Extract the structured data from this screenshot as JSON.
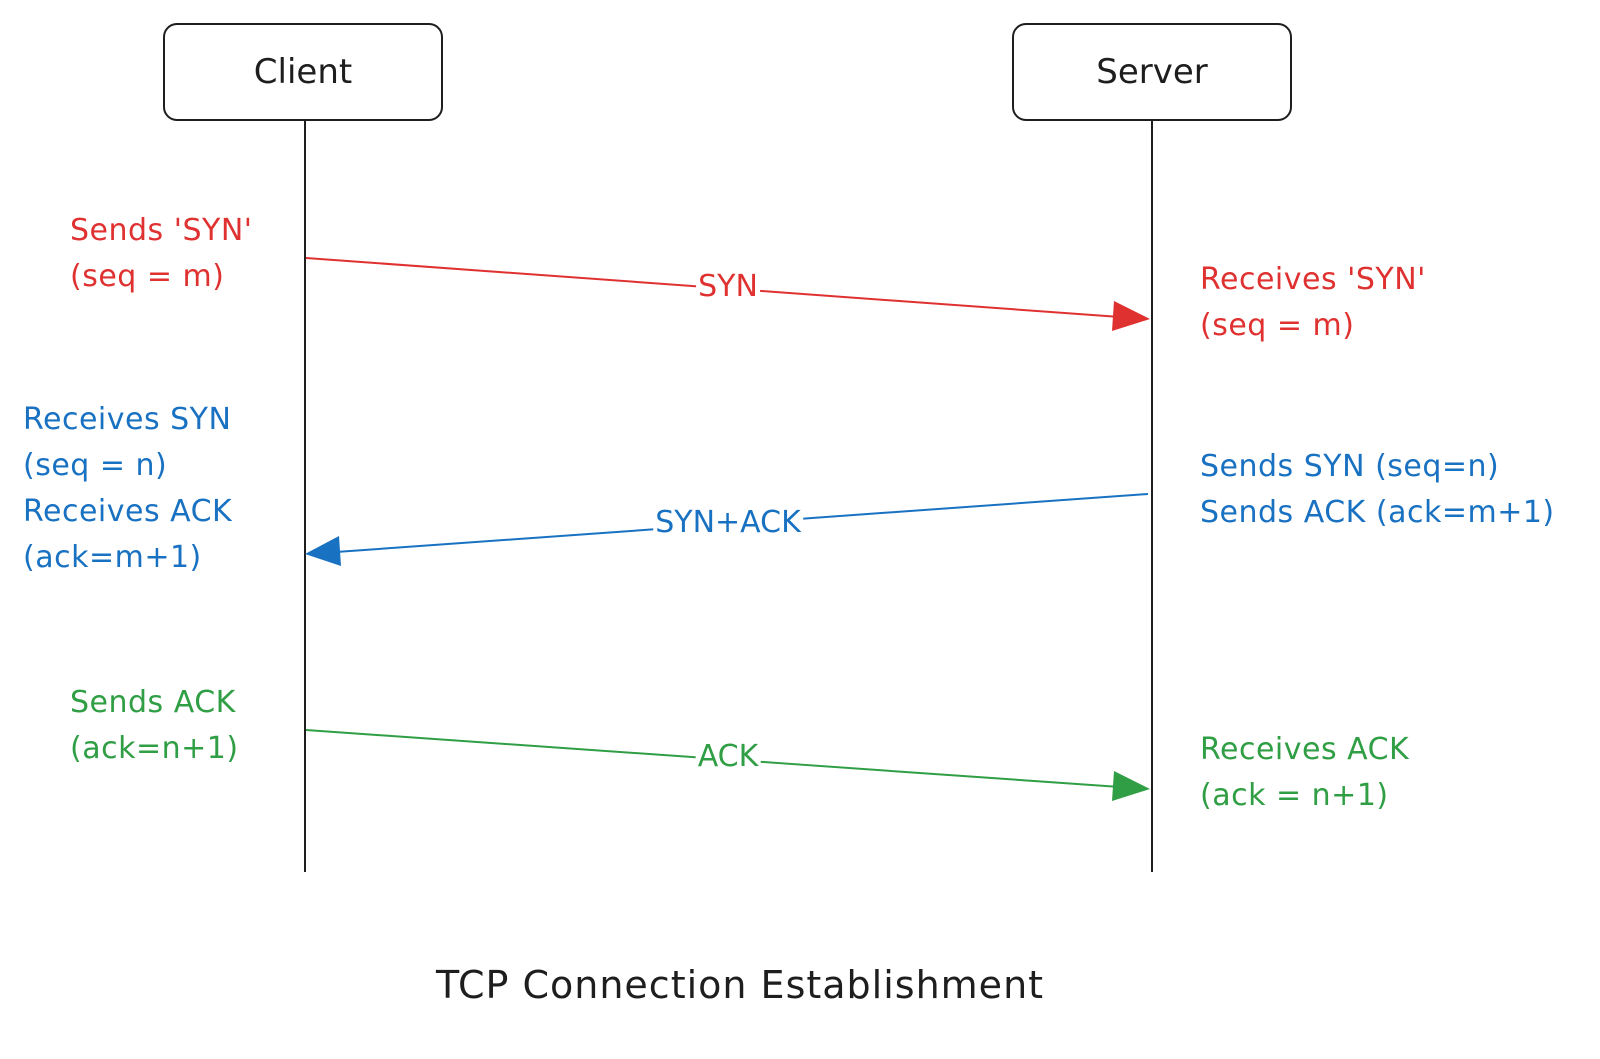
{
  "title": "TCP Connection Establishment",
  "colors": {
    "lifeline": "#1e1e1e",
    "syn": "#e03131",
    "synack": "#1971c2",
    "ack": "#2f9e44"
  },
  "participants": {
    "client": "Client",
    "server": "Server"
  },
  "messages": {
    "syn": "SYN",
    "synack": "SYN+ACK",
    "ack": "ACK"
  },
  "notes": {
    "client_syn": [
      "Sends 'SYN'",
      "(seq = m)"
    ],
    "server_syn": [
      "Receives 'SYN'",
      "(seq = m)"
    ],
    "client_synack": [
      "Receives SYN",
      "(seq = n)",
      "Receives ACK",
      "(ack=m+1)"
    ],
    "server_synack": [
      "Sends SYN (seq=n)",
      "Sends ACK (ack=m+1)"
    ],
    "client_ack": [
      "Sends ACK",
      "(ack=n+1)"
    ],
    "server_ack": [
      "Receives ACK",
      "(ack = n+1)"
    ]
  }
}
